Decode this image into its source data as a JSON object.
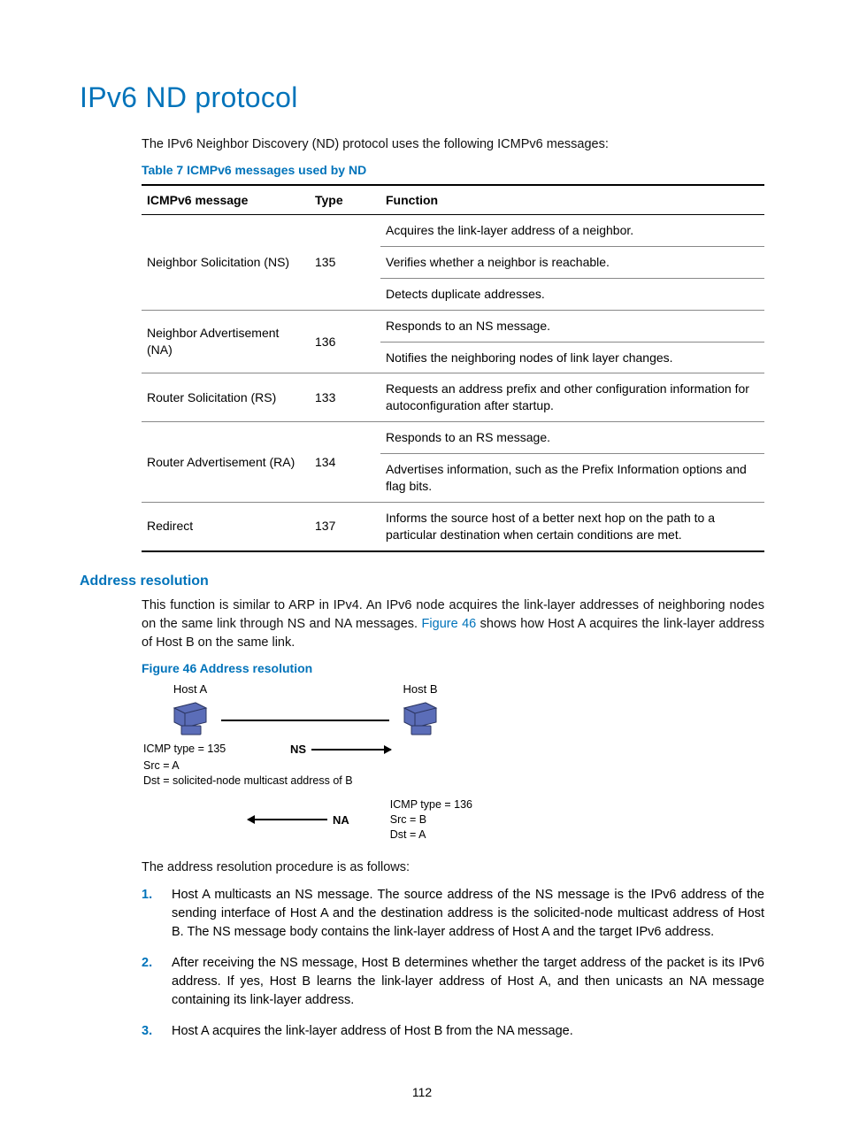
{
  "colors": {
    "accent": "#0073ba",
    "text": "#000000",
    "rule_light": "#888888",
    "host_fill": "#5b6db8",
    "host_stroke": "#2b3560"
  },
  "title": "IPv6 ND protocol",
  "intro": "The IPv6 Neighbor Discovery (ND) protocol uses the following ICMPv6 messages:",
  "table": {
    "caption": "Table 7 ICMPv6 messages used by ND",
    "headers": {
      "msg": "ICMPv6 message",
      "type": "Type",
      "func": "Function"
    },
    "groups": [
      {
        "msg": "Neighbor Solicitation (NS)",
        "type": "135",
        "funcs": [
          "Acquires the link-layer address of a neighbor.",
          "Verifies whether a neighbor is reachable.",
          "Detects duplicate addresses."
        ]
      },
      {
        "msg": "Neighbor Advertisement (NA)",
        "type": "136",
        "funcs": [
          "Responds to an NS message.",
          "Notifies the neighboring nodes of link layer changes."
        ]
      },
      {
        "msg": "Router Solicitation (RS)",
        "type": "133",
        "funcs": [
          "Requests an address prefix and other configuration information for autoconfiguration after startup."
        ]
      },
      {
        "msg": "Router Advertisement (RA)",
        "type": "134",
        "funcs": [
          "Responds to an RS message.",
          "Advertises information, such as the Prefix Information options and flag bits."
        ]
      },
      {
        "msg": "Redirect",
        "type": "137",
        "funcs": [
          "Informs the source host of a better next hop on the path to a particular destination when certain conditions are met."
        ]
      }
    ]
  },
  "section": {
    "heading": "Address resolution",
    "para_pre": "This function is similar to ARP in IPv4. An IPv6 node acquires the link-layer addresses of neighboring nodes on the same link through NS and NA messages. ",
    "figref": "Figure 46",
    "para_post": " shows how Host A acquires the link-layer address of Host B on the same link."
  },
  "figure": {
    "caption": "Figure 46 Address resolution",
    "host_a": "Host A",
    "host_b": "Host B",
    "ns": {
      "label": "NS",
      "l1": "ICMP type = 135",
      "l2": "Src = A",
      "l3": "Dst = solicited-node multicast address of B"
    },
    "na": {
      "label": "NA",
      "l1": "ICMP type = 136",
      "l2": "Src = B",
      "l3": "Dst = A"
    }
  },
  "procedure_intro": "The address resolution procedure is as follows:",
  "steps": [
    "Host A multicasts an NS message. The source address of the NS message is the IPv6 address of the sending interface of Host A and the destination address is the solicited-node multicast address of Host B. The NS message body contains the link-layer address of Host A and the target IPv6 address.",
    "After receiving the NS message, Host B determines whether the target address of the packet is its IPv6 address. If yes, Host B learns the link-layer address of Host A, and then unicasts an NA message containing its link-layer address.",
    "Host A acquires the link-layer address of Host B from the NA message."
  ],
  "page_number": "112"
}
